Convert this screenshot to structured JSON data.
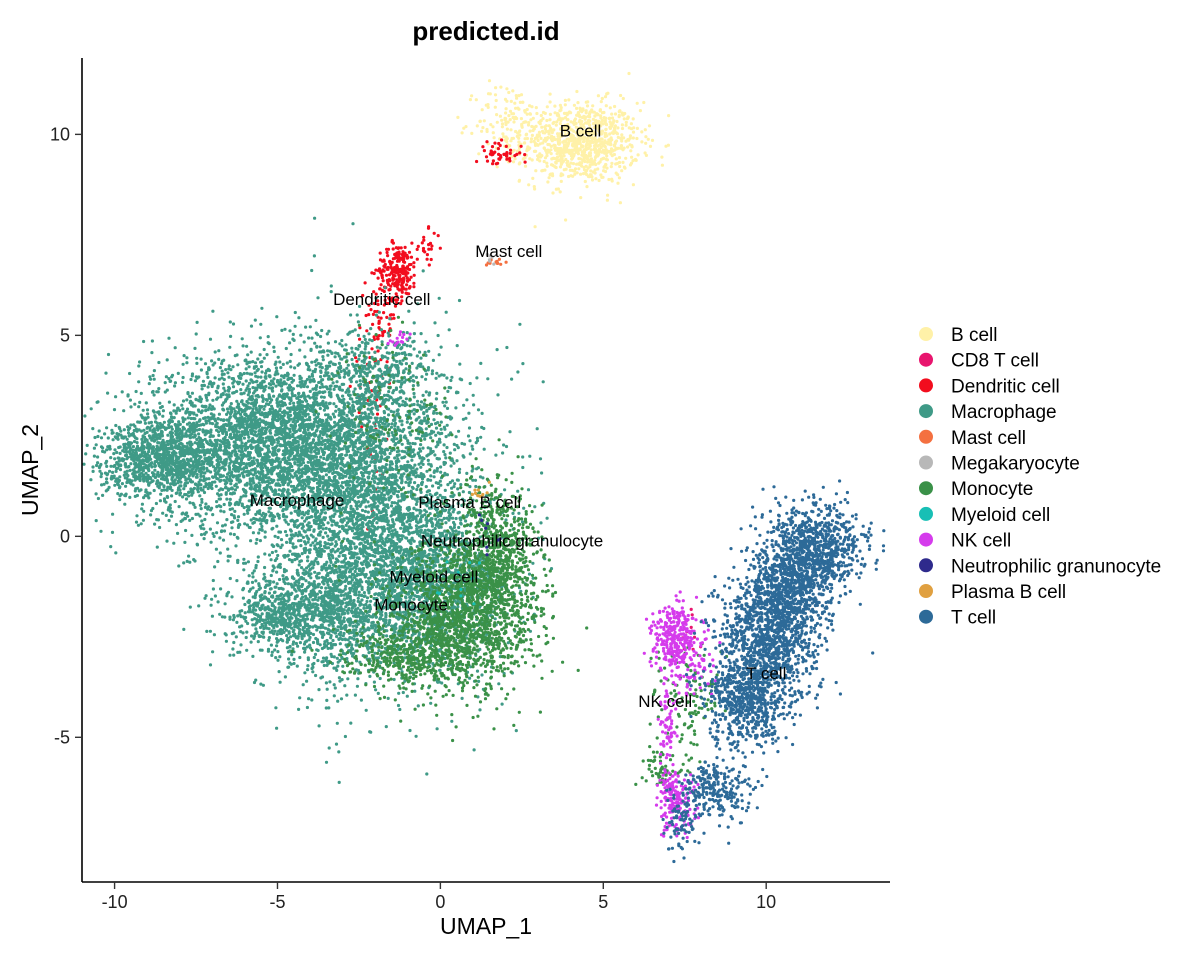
{
  "chart_data": {
    "type": "scatter",
    "title": "predicted.id",
    "xlabel": "UMAP_1",
    "ylabel": "UMAP_2",
    "xlim": [
      -11,
      13.8
    ],
    "ylim": [
      -8.6,
      11.9
    ],
    "xticks": [
      -10,
      -5,
      0,
      5,
      10
    ],
    "yticks": [
      -5,
      0,
      5,
      10
    ],
    "xtick_labels": [
      "-10",
      "-5",
      "0",
      "5",
      "10"
    ],
    "ytick_labels": [
      "-5",
      "0",
      "5",
      "10"
    ],
    "grid": false,
    "legend_position": "right",
    "series": [
      {
        "name": "B cell",
        "color": "#FFF1A8",
        "clusters": [
          {
            "cx": 4.3,
            "cy": 9.8,
            "sx": 0.9,
            "sy": 0.5,
            "n": 900
          },
          {
            "cx": 2.1,
            "cy": 10.3,
            "sx": 0.5,
            "sy": 0.5,
            "n": 120
          }
        ]
      },
      {
        "name": "CD8 T cell",
        "color": "#E8156E",
        "clusters": [
          {
            "cx": 7.6,
            "cy": -2.5,
            "sx": 0.3,
            "sy": 0.5,
            "n": 10
          }
        ]
      },
      {
        "name": "Dendritic cell",
        "color": "#F20D1E",
        "clusters": [
          {
            "cx": -1.3,
            "cy": 6.6,
            "sx": 0.3,
            "sy": 0.35,
            "n": 220
          },
          {
            "cx": -1.8,
            "cy": 5.5,
            "sx": 0.25,
            "sy": 0.5,
            "n": 60
          },
          {
            "cx": 1.8,
            "cy": 9.5,
            "sx": 0.35,
            "sy": 0.15,
            "n": 50
          },
          {
            "cx": -0.4,
            "cy": 7.2,
            "sx": 0.2,
            "sy": 0.2,
            "n": 20
          },
          {
            "cx": -2.1,
            "cy": 3.0,
            "sx": 0.3,
            "sy": 1.2,
            "n": 40
          }
        ]
      },
      {
        "name": "Macrophage",
        "color": "#3F9A87",
        "clusters": [
          {
            "cx": -5.2,
            "cy": 2.3,
            "sx": 2.0,
            "sy": 1.1,
            "n": 3600
          },
          {
            "cx": -2.0,
            "cy": 0.6,
            "sx": 1.6,
            "sy": 1.9,
            "n": 3200
          },
          {
            "cx": -8.6,
            "cy": 1.9,
            "sx": 0.9,
            "sy": 0.45,
            "n": 900
          },
          {
            "cx": -3.5,
            "cy": -1.8,
            "sx": 1.4,
            "sy": 0.8,
            "n": 1100
          },
          {
            "cx": -0.2,
            "cy": -1.2,
            "sx": 1.2,
            "sy": 1.0,
            "n": 1000
          },
          {
            "cx": -5.0,
            "cy": -2.0,
            "sx": 0.7,
            "sy": 0.3,
            "n": 250
          },
          {
            "cx": -1.8,
            "cy": 4.2,
            "sx": 0.8,
            "sy": 0.5,
            "n": 250
          }
        ]
      },
      {
        "name": "Mast cell",
        "color": "#F47040",
        "clusters": [
          {
            "cx": 1.7,
            "cy": 6.8,
            "sx": 0.15,
            "sy": 0.08,
            "n": 12
          }
        ]
      },
      {
        "name": "Megakaryocyte",
        "color": "#B8B8B8",
        "clusters": [
          {
            "cx": 1.6,
            "cy": 6.9,
            "sx": 0.12,
            "sy": 0.1,
            "n": 6
          }
        ]
      },
      {
        "name": "Monocyte",
        "color": "#3A9148",
        "clusters": [
          {
            "cx": 0.8,
            "cy": -2.0,
            "sx": 1.1,
            "sy": 0.9,
            "n": 1500
          },
          {
            "cx": 1.8,
            "cy": -0.3,
            "sx": 0.6,
            "sy": 0.8,
            "n": 600
          },
          {
            "cx": -1.0,
            "cy": -3.0,
            "sx": 1.0,
            "sy": 0.35,
            "n": 400
          },
          {
            "cx": 7.6,
            "cy": -4.0,
            "sx": 0.45,
            "sy": 0.6,
            "n": 120
          },
          {
            "cx": 6.8,
            "cy": -5.8,
            "sx": 0.3,
            "sy": 0.25,
            "n": 60
          },
          {
            "cx": -1.5,
            "cy": 3.0,
            "sx": 1.0,
            "sy": 1.2,
            "n": 120
          }
        ]
      },
      {
        "name": "Myeloid cell",
        "color": "#18BFB5",
        "clusters": [
          {
            "cx": 0.5,
            "cy": -1.0,
            "sx": 0.6,
            "sy": 0.5,
            "n": 10
          }
        ]
      },
      {
        "name": "NK cell",
        "color": "#D53BEC",
        "clusters": [
          {
            "cx": 7.2,
            "cy": -2.5,
            "sx": 0.35,
            "sy": 0.4,
            "n": 280
          },
          {
            "cx": 7.2,
            "cy": -6.6,
            "sx": 0.3,
            "sy": 0.4,
            "n": 180
          },
          {
            "cx": 7.0,
            "cy": -4.7,
            "sx": 0.15,
            "sy": 0.6,
            "n": 70
          },
          {
            "cx": -1.2,
            "cy": 4.9,
            "sx": 0.2,
            "sy": 0.1,
            "n": 15
          },
          {
            "cx": 7.8,
            "cy": -3.3,
            "sx": 0.4,
            "sy": 0.4,
            "n": 60
          }
        ]
      },
      {
        "name": "Neutrophilic granunocyte",
        "color": "#2E2A8C",
        "clusters": [
          {
            "cx": 1.5,
            "cy": 0.2,
            "sx": 0.3,
            "sy": 0.3,
            "n": 8
          }
        ]
      },
      {
        "name": "Plasma B cell",
        "color": "#E0A040",
        "clusters": [
          {
            "cx": 1.2,
            "cy": 1.1,
            "sx": 0.15,
            "sy": 0.12,
            "n": 10
          }
        ]
      },
      {
        "name": "T cell",
        "color": "#2D6A98",
        "clusters": [
          {
            "cx": 11.5,
            "cy": -0.3,
            "sx": 0.75,
            "sy": 0.55,
            "n": 800
          },
          {
            "cx": 10.1,
            "cy": -2.4,
            "sx": 0.75,
            "sy": 0.8,
            "n": 1100
          },
          {
            "cx": 9.4,
            "cy": -4.1,
            "sx": 0.6,
            "sy": 0.6,
            "n": 650
          },
          {
            "cx": 8.4,
            "cy": -6.4,
            "sx": 0.6,
            "sy": 0.35,
            "n": 250
          },
          {
            "cx": 10.7,
            "cy": -1.3,
            "sx": 0.6,
            "sy": 0.6,
            "n": 500
          },
          {
            "cx": 7.4,
            "cy": -7.3,
            "sx": 0.25,
            "sy": 0.3,
            "n": 60
          }
        ]
      }
    ],
    "annotations": [
      {
        "text": "B cell",
        "x": 4.3,
        "y": 10.1
      },
      {
        "text": "Mast cell",
        "x": 2.1,
        "y": 7.1
      },
      {
        "text": "Dendritic cell",
        "x": -1.8,
        "y": 5.9
      },
      {
        "text": "Macrophage",
        "x": -4.4,
        "y": 0.9
      },
      {
        "text": "Plasma B cell",
        "x": 0.9,
        "y": 0.85
      },
      {
        "text": "Neutrophilic granulocyte",
        "x": 2.2,
        "y": -0.1
      },
      {
        "text": "Myeloid cell",
        "x": -0.2,
        "y": -1.0
      },
      {
        "text": "Monocyte",
        "x": -0.9,
        "y": -1.7
      },
      {
        "text": "T cell",
        "x": 10.0,
        "y": -3.4
      },
      {
        "text": "NK cell",
        "x": 6.9,
        "y": -4.1
      }
    ]
  }
}
